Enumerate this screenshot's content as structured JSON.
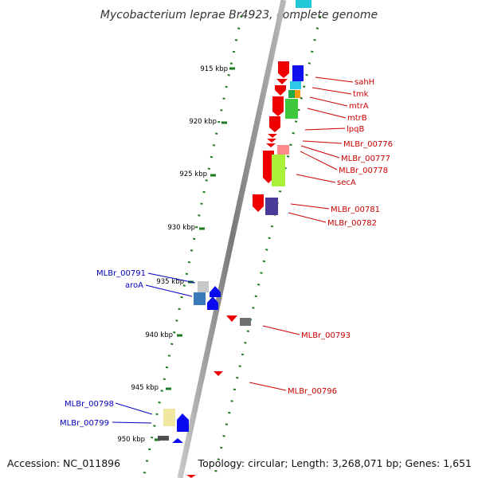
{
  "header": {
    "title": "Mycobacterium leprae Br4923, complete genome"
  },
  "footer": {
    "accession": "Accession: NC_011896",
    "summary": "Topology: circular; Length: 3,268,071 bp; Genes: 1,651"
  },
  "scale": {
    "ticks": [
      {
        "label": "915 kbp",
        "kbp": 915
      },
      {
        "label": "920 kbp",
        "kbp": 920
      },
      {
        "label": "925 kbp",
        "kbp": 925
      },
      {
        "label": "930 kbp",
        "kbp": 930
      },
      {
        "label": "935 kbp",
        "kbp": 935
      },
      {
        "label": "940 kbp",
        "kbp": 940
      },
      {
        "label": "945 kbp",
        "kbp": 945
      },
      {
        "label": "950 kbp",
        "kbp": 950
      }
    ]
  },
  "genes_forward": [
    {
      "label": "sahH",
      "color": "#cc0000"
    },
    {
      "label": "tmk",
      "color": "#cc0000"
    },
    {
      "label": "mtrA",
      "color": "#cc0000"
    },
    {
      "label": "mtrB",
      "color": "#cc0000"
    },
    {
      "label": "lpqB",
      "color": "#cc0000"
    },
    {
      "label": "MLBr_00776",
      "color": "#cc0000"
    },
    {
      "label": "MLBr_00777",
      "color": "#cc0000"
    },
    {
      "label": "MLBr_00778",
      "color": "#cc0000"
    },
    {
      "label": "secA",
      "color": "#cc0000"
    },
    {
      "label": "MLBr_00781",
      "color": "#cc0000"
    },
    {
      "label": "MLBr_00782",
      "color": "#cc0000"
    },
    {
      "label": "MLBr_00793",
      "color": "#cc0000"
    },
    {
      "label": "MLBr_00796",
      "color": "#cc0000"
    }
  ],
  "genes_reverse": [
    {
      "label": "MLBr_00791",
      "color": "#0000bb"
    },
    {
      "label": "aroA",
      "color": "#0000bb"
    },
    {
      "label": "MLBr_00798",
      "color": "#0000bb"
    },
    {
      "label": "MLBr_00799",
      "color": "#0000bb"
    }
  ],
  "colors": {
    "forward_strand": "#ff0000",
    "reverse_strand": "#0000ff",
    "tick_marks": "#1e7a1e",
    "genome_axis": "#808080"
  }
}
